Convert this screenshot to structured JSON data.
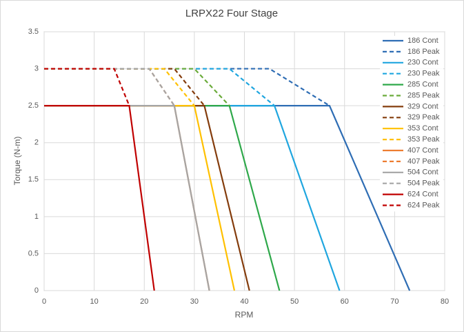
{
  "chart_data": {
    "type": "line",
    "title": "LRPX22 Four Stage",
    "x_label": "RPM",
    "y_label": "Torque (N-m)",
    "xlim": [
      0,
      80
    ],
    "xticks": [
      0,
      10,
      20,
      30,
      40,
      50,
      60,
      70,
      80
    ],
    "ylim": [
      0,
      3.5
    ],
    "yticks": [
      0,
      0.5,
      1,
      1.5,
      2,
      2.5,
      3,
      3.5
    ],
    "grid": true,
    "legend": "top-right",
    "series": [
      {
        "name": "186 Cont",
        "color": "#2e6db4",
        "dashed": false,
        "x": [
          0,
          57,
          73
        ],
        "values": [
          2.5,
          2.5,
          0
        ]
      },
      {
        "name": "186 Peak",
        "color": "#2e6db4",
        "dashed": true,
        "x": [
          0,
          45,
          57
        ],
        "values": [
          3,
          3,
          2.5
        ]
      },
      {
        "name": "230 Cont",
        "color": "#1fa6df",
        "dashed": false,
        "x": [
          0,
          46,
          59
        ],
        "values": [
          2.5,
          2.5,
          0
        ]
      },
      {
        "name": "230 Peak",
        "color": "#1fa6df",
        "dashed": true,
        "x": [
          0,
          37,
          46
        ],
        "values": [
          3,
          3,
          2.5
        ]
      },
      {
        "name": "285 Cont",
        "color": "#2ea84a",
        "dashed": false,
        "x": [
          0,
          37,
          47
        ],
        "values": [
          2.5,
          2.5,
          0
        ]
      },
      {
        "name": "285 Peak",
        "color": "#6aab3a",
        "dashed": true,
        "x": [
          0,
          30,
          37
        ],
        "values": [
          3,
          3,
          2.5
        ]
      },
      {
        "name": "329 Cont",
        "color": "#843c0c",
        "dashed": false,
        "x": [
          0,
          32,
          41
        ],
        "values": [
          2.5,
          2.5,
          0
        ]
      },
      {
        "name": "329 Peak",
        "color": "#843c0c",
        "dashed": true,
        "x": [
          0,
          26,
          32
        ],
        "values": [
          3,
          3,
          2.5
        ]
      },
      {
        "name": "353 Cont",
        "color": "#ffc000",
        "dashed": false,
        "x": [
          0,
          30,
          38
        ],
        "values": [
          2.5,
          2.5,
          0
        ]
      },
      {
        "name": "353 Peak",
        "color": "#ffc000",
        "dashed": true,
        "x": [
          0,
          24,
          30
        ],
        "values": [
          3,
          3,
          2.5
        ]
      },
      {
        "name": "407 Cont",
        "color": "#ed7d31",
        "dashed": false,
        "x": [
          0,
          26,
          33
        ],
        "values": [
          2.5,
          2.5,
          0
        ]
      },
      {
        "name": "407 Peak",
        "color": "#ed7d31",
        "dashed": true,
        "x": [
          0,
          21,
          26
        ],
        "values": [
          3,
          3,
          2.5
        ]
      },
      {
        "name": "504 Cont",
        "color": "#a5a5a5",
        "dashed": false,
        "x": [
          0,
          26,
          33
        ],
        "values": [
          2.5,
          2.5,
          0
        ]
      },
      {
        "name": "504 Peak",
        "color": "#a5a5a5",
        "dashed": true,
        "x": [
          0,
          21,
          26
        ],
        "values": [
          3,
          3,
          2.5
        ]
      },
      {
        "name": "624 Cont",
        "color": "#c00000",
        "dashed": false,
        "x": [
          0,
          17,
          22
        ],
        "values": [
          2.5,
          2.5,
          0
        ]
      },
      {
        "name": "624 Peak",
        "color": "#c00000",
        "dashed": true,
        "x": [
          0,
          14,
          17
        ],
        "values": [
          3,
          3,
          2.5
        ]
      }
    ]
  }
}
